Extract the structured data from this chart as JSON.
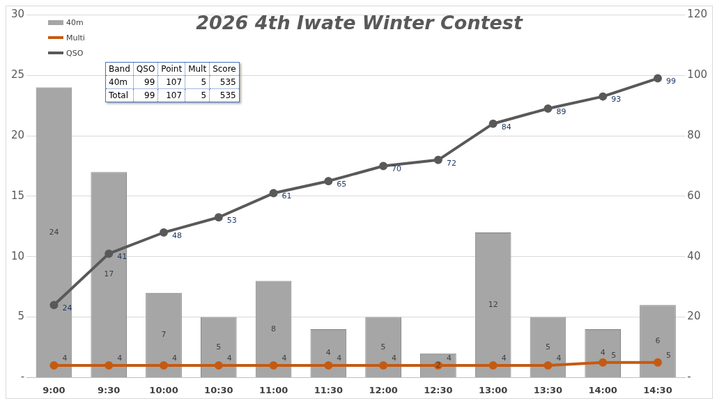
{
  "chart_data": {
    "type": "bar",
    "title": "2026 4th Iwate Winter Contest",
    "categories": [
      "9:00",
      "9:30",
      "10:00",
      "10:30",
      "11:00",
      "11:30",
      "12:00",
      "12:30",
      "13:00",
      "13:30",
      "14:00",
      "14:30"
    ],
    "series": [
      {
        "name": "40m",
        "color": "#a6a6a6",
        "values": [
          24,
          17,
          7,
          5,
          8,
          4,
          5,
          2,
          12,
          5,
          4,
          6
        ]
      },
      {
        "name": "Multi",
        "type": "line",
        "axis": "y2",
        "color": "#c55a11",
        "values": [
          4,
          4,
          4,
          4,
          4,
          4,
          4,
          4,
          4,
          4,
          5,
          5
        ]
      },
      {
        "name": "QSO",
        "type": "line",
        "axis": "y2",
        "color": "#595959",
        "values": [
          24,
          41,
          48,
          53,
          61,
          65,
          70,
          72,
          84,
          89,
          93,
          99
        ]
      }
    ],
    "ylim": [
      0,
      30
    ],
    "yticks": [
      {
        "value": 0,
        "label": "-"
      },
      5,
      10,
      15,
      20,
      25,
      30
    ],
    "y2lim": [
      0,
      120
    ],
    "y2ticks": [
      {
        "value": 0,
        "label": "-"
      },
      20,
      40,
      60,
      80,
      100,
      120
    ],
    "grid": "y",
    "legend": "top left",
    "marker": "circle",
    "data_labels": true,
    "annotations": [
      "Band",
      "QSO",
      "Point",
      "Mult",
      "Score",
      "40m",
      "99",
      "107",
      "5",
      "535",
      "Total",
      "99",
      "107",
      "5",
      "535"
    ]
  }
}
